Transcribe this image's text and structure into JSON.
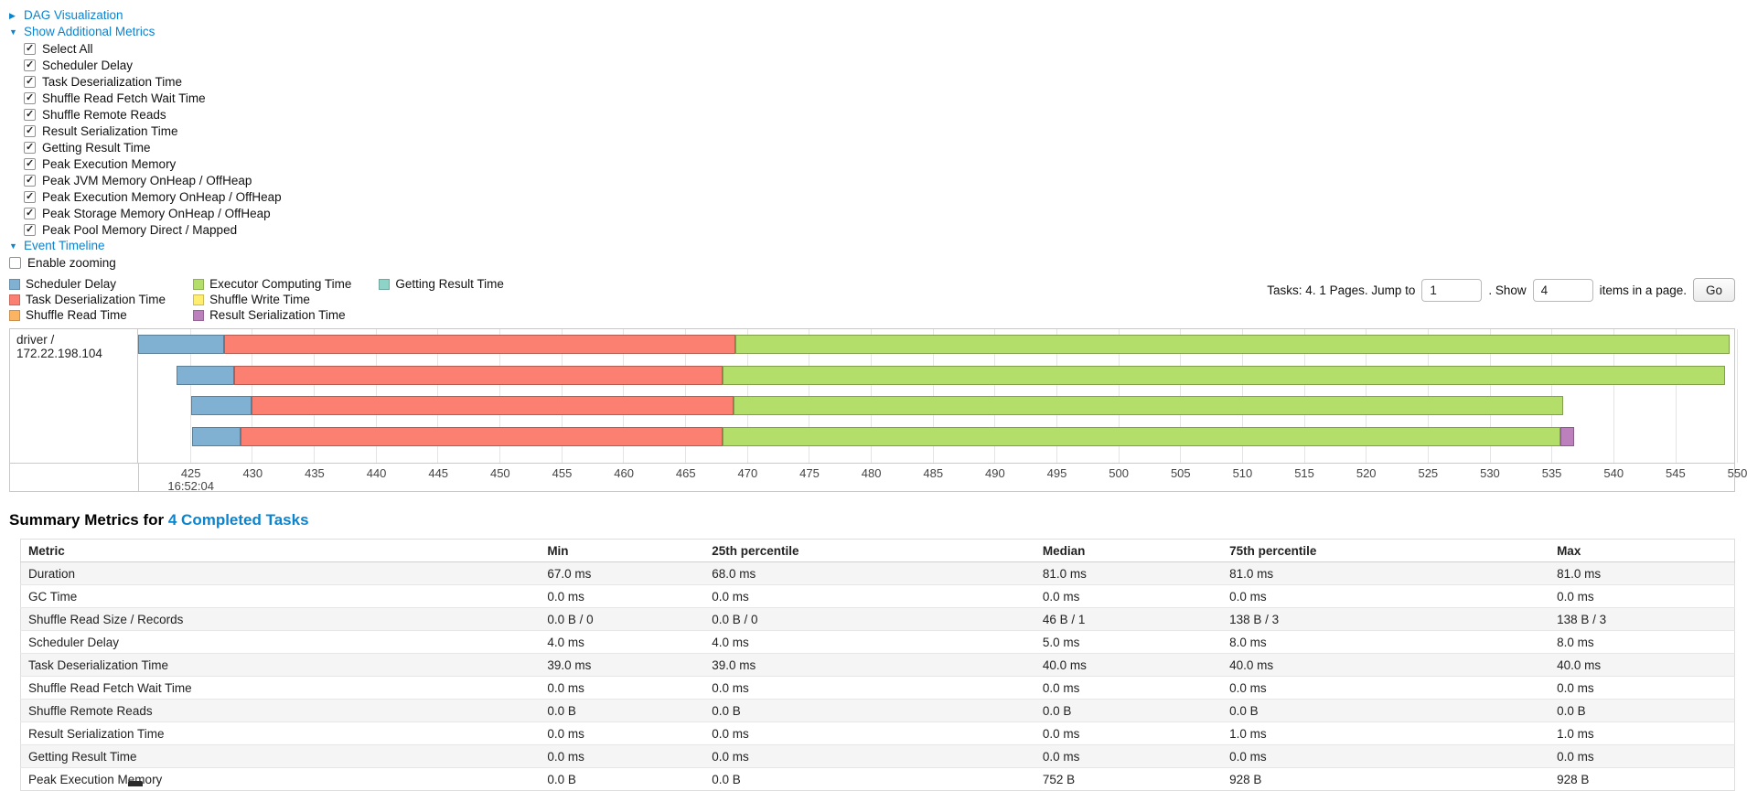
{
  "colors": {
    "link": "#0b84cf",
    "scheduler_delay": "#80B1D3",
    "task_deserialization_time": "#FB8072",
    "shuffle_read_time": "#FDB462",
    "executor_computing_time": "#B3DE69",
    "shuffle_write_time": "#FFED6F",
    "result_serialization_time": "#BC80BD",
    "getting_result_time": "#8DD3C7"
  },
  "sections": {
    "dag": {
      "label": "DAG Visualization",
      "arrow": "▶",
      "collapsed": true
    },
    "metrics": {
      "label": "Show Additional Metrics",
      "arrow": "▼",
      "collapsed": false
    },
    "event_timeline": {
      "label": "Event Timeline",
      "arrow": "▼",
      "collapsed": false
    }
  },
  "metric_checkboxes": [
    {
      "label": "Select All",
      "checked": true
    },
    {
      "label": "Scheduler Delay",
      "checked": true
    },
    {
      "label": "Task Deserialization Time",
      "checked": true
    },
    {
      "label": "Shuffle Read Fetch Wait Time",
      "checked": true
    },
    {
      "label": "Shuffle Remote Reads",
      "checked": true
    },
    {
      "label": "Result Serialization Time",
      "checked": true
    },
    {
      "label": "Getting Result Time",
      "checked": true
    },
    {
      "label": "Peak Execution Memory",
      "checked": true
    },
    {
      "label": "Peak JVM Memory OnHeap / OffHeap",
      "checked": true
    },
    {
      "label": "Peak Execution Memory OnHeap / OffHeap",
      "checked": true
    },
    {
      "label": "Peak Storage Memory OnHeap / OffHeap",
      "checked": true
    },
    {
      "label": "Peak Pool Memory Direct / Mapped",
      "checked": true
    }
  ],
  "enable_zooming": {
    "label": "Enable zooming",
    "checked": false
  },
  "legend": [
    {
      "label": "Scheduler Delay",
      "type": "scheduler_delay"
    },
    {
      "label": "Task Deserialization Time",
      "type": "task_deserialization_time"
    },
    {
      "label": "Shuffle Read Time",
      "type": "shuffle_read_time"
    },
    {
      "label": "Executor Computing Time",
      "type": "executor_computing_time"
    },
    {
      "label": "Shuffle Write Time",
      "type": "shuffle_write_time"
    },
    {
      "label": "Result Serialization Time",
      "type": "result_serialization_time"
    },
    {
      "label": "Getting Result Time",
      "type": "getting_result_time"
    }
  ],
  "pagination": {
    "prefix": "Tasks: 4. 1 Pages. Jump to",
    "page_value": "1",
    "middle": ". Show",
    "show_value": "4",
    "suffix": "items in a page.",
    "go_label": "Go"
  },
  "timeline": {
    "executor_label": "driver / 172.22.198.104",
    "start_time_label": "16:52:04",
    "axis": {
      "start_pct": 3.25,
      "step_pct": 3.878,
      "labels": [
        "425",
        "430",
        "435",
        "440",
        "445",
        "450",
        "455",
        "460",
        "465",
        "470",
        "475",
        "480",
        "485",
        "490",
        "495",
        "500",
        "505",
        "510",
        "515",
        "520",
        "525",
        "530",
        "535",
        "540",
        "545",
        "550"
      ]
    },
    "bars": [
      {
        "segments": [
          {
            "type": "scheduler_delay",
            "left": 0,
            "width": 5.4
          },
          {
            "type": "task_deserialization_time",
            "left": 5.4,
            "width": 32.0
          },
          {
            "type": "executor_computing_time",
            "left": 37.4,
            "width": 62.3
          }
        ]
      },
      {
        "segments": [
          {
            "type": "scheduler_delay",
            "left": 2.4,
            "width": 3.6
          },
          {
            "type": "task_deserialization_time",
            "left": 6.0,
            "width": 30.6
          },
          {
            "type": "executor_computing_time",
            "left": 36.6,
            "width": 62.8
          }
        ]
      },
      {
        "segments": [
          {
            "type": "scheduler_delay",
            "left": 3.3,
            "width": 3.8
          },
          {
            "type": "task_deserialization_time",
            "left": 7.1,
            "width": 30.2
          },
          {
            "type": "executor_computing_time",
            "left": 37.3,
            "width": 52.0
          }
        ]
      },
      {
        "segments": [
          {
            "type": "scheduler_delay",
            "left": 3.4,
            "width": 3.0
          },
          {
            "type": "task_deserialization_time",
            "left": 6.4,
            "width": 30.2
          },
          {
            "type": "executor_computing_time",
            "left": 36.6,
            "width": 52.5
          },
          {
            "type": "result_serialization_time",
            "left": 89.1,
            "width": 0.9
          }
        ]
      }
    ]
  },
  "summary": {
    "title_prefix": "Summary Metrics for",
    "title_link": "4 Completed Tasks",
    "columns": [
      "Metric",
      "Min",
      "25th percentile",
      "Median",
      "75th percentile",
      "Max"
    ],
    "rows": [
      [
        "Duration",
        "67.0 ms",
        "68.0 ms",
        "81.0 ms",
        "81.0 ms",
        "81.0 ms"
      ],
      [
        "GC Time",
        "0.0 ms",
        "0.0 ms",
        "0.0 ms",
        "0.0 ms",
        "0.0 ms"
      ],
      [
        "Shuffle Read Size / Records",
        "0.0 B / 0",
        "0.0 B / 0",
        "46 B / 1",
        "138 B / 3",
        "138 B / 3"
      ],
      [
        "Scheduler Delay",
        "4.0 ms",
        "4.0 ms",
        "5.0 ms",
        "8.0 ms",
        "8.0 ms"
      ],
      [
        "Task Deserialization Time",
        "39.0 ms",
        "39.0 ms",
        "40.0 ms",
        "40.0 ms",
        "40.0 ms"
      ],
      [
        "Shuffle Read Fetch Wait Time",
        "0.0 ms",
        "0.0 ms",
        "0.0 ms",
        "0.0 ms",
        "0.0 ms"
      ],
      [
        "Shuffle Remote Reads",
        "0.0 B",
        "0.0 B",
        "0.0 B",
        "0.0 B",
        "0.0 B"
      ],
      [
        "Result Serialization Time",
        "0.0 ms",
        "0.0 ms",
        "0.0 ms",
        "1.0 ms",
        "1.0 ms"
      ],
      [
        "Getting Result Time",
        "0.0 ms",
        "0.0 ms",
        "0.0 ms",
        "0.0 ms",
        "0.0 ms"
      ],
      [
        "Peak Execution Memory",
        "0.0 B",
        "0.0 B",
        "752 B",
        "928 B",
        "928 B"
      ]
    ]
  }
}
